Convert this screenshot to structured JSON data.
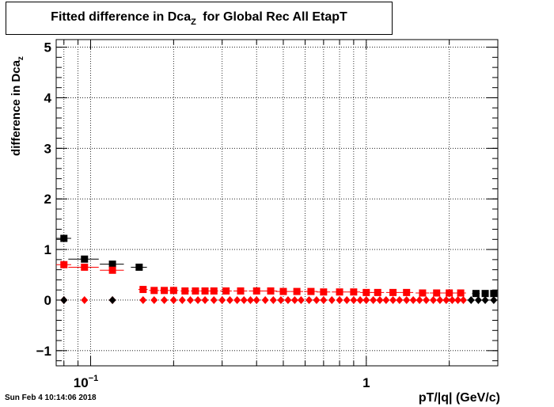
{
  "title": {
    "main": "Fitted difference in Dca",
    "sub": "Z",
    "rest": " for Global Rec All EtapT"
  },
  "ylabel": {
    "main": "difference in Dca",
    "sub": "z"
  },
  "xlabel": "pT/|q| (GeV/c)",
  "timestamp": "Sun Feb  4 10:14:06 2018",
  "chart_data": {
    "type": "scatter",
    "xscale": "log",
    "xlim": [
      0.075,
      3.0
    ],
    "ylim": [
      -1.3,
      5.15
    ],
    "grid": true,
    "x_tick_labels": [
      {
        "value": 0.1,
        "base": "10",
        "exp": "−1"
      },
      {
        "value": 1,
        "base": "1",
        "exp": ""
      }
    ],
    "y_tick_labels": [
      "−1",
      "0",
      "1",
      "2",
      "3",
      "4",
      "5"
    ],
    "colors": {
      "black": "#000000",
      "red": "#ff0000"
    },
    "series": [
      {
        "color": "#000000",
        "marker": "square",
        "x": [
          0.08,
          0.095,
          0.12,
          0.15
        ],
        "y": [
          1.22,
          0.81,
          0.71,
          0.65
        ],
        "xerr": [
          0.005,
          0.012,
          0.012,
          0.01
        ]
      },
      {
        "color": "#ff0000",
        "marker": "square",
        "x": [
          0.08,
          0.095,
          0.12,
          0.155,
          0.17,
          0.185,
          0.2,
          0.22,
          0.24,
          0.26,
          0.28,
          0.31,
          0.35,
          0.4,
          0.45,
          0.5,
          0.56,
          0.63,
          0.7,
          0.8,
          0.9,
          1.0,
          1.1,
          1.25,
          1.4,
          1.6,
          1.8,
          2.0,
          2.2
        ],
        "y": [
          0.7,
          0.65,
          0.59,
          0.21,
          0.19,
          0.19,
          0.19,
          0.18,
          0.18,
          0.18,
          0.18,
          0.18,
          0.18,
          0.18,
          0.18,
          0.17,
          0.17,
          0.17,
          0.16,
          0.16,
          0.16,
          0.15,
          0.15,
          0.15,
          0.15,
          0.14,
          0.14,
          0.14,
          0.14
        ],
        "xerr": [
          0.005,
          0.012,
          0.012,
          0.006,
          0.007,
          0.007,
          0.008,
          0.008,
          0.009,
          0.01,
          0.01,
          0.015,
          0.02,
          0.025,
          0.025,
          0.03,
          0.03,
          0.035,
          0.04,
          0.05,
          0.05,
          0.05,
          0.06,
          0.07,
          0.08,
          0.09,
          0.1,
          0.1,
          0.1
        ]
      },
      {
        "color": "#000000",
        "marker": "square",
        "x": [
          2.5,
          2.7,
          2.9
        ],
        "y": [
          0.13,
          0.13,
          0.13
        ],
        "xerr": [
          0.08,
          0.08,
          0.08
        ]
      },
      {
        "color": "#ff0000",
        "marker": "diamond",
        "x": [
          0.08,
          0.095,
          0.12,
          0.155,
          0.17,
          0.185,
          0.2,
          0.215,
          0.23,
          0.245,
          0.26,
          0.28,
          0.3,
          0.32,
          0.34,
          0.36,
          0.38,
          0.4,
          0.43,
          0.46,
          0.49,
          0.52,
          0.55,
          0.58,
          0.62,
          0.66,
          0.7,
          0.75,
          0.8,
          0.85,
          0.9,
          0.95,
          1.0,
          1.06,
          1.12,
          1.18,
          1.25,
          1.32,
          1.4,
          1.48,
          1.56,
          1.65,
          1.75,
          1.85,
          1.95,
          2.05,
          2.15,
          2.25
        ],
        "y": [
          0,
          0,
          0,
          0,
          0,
          0,
          0,
          0,
          0,
          0,
          0,
          0,
          0,
          0,
          0,
          0,
          0,
          0,
          0,
          0,
          0,
          0,
          0,
          0,
          0,
          0,
          0,
          0,
          0,
          0,
          0,
          0,
          0,
          0,
          0,
          0,
          0,
          0,
          0,
          0,
          0,
          0,
          0,
          0,
          0,
          0,
          0,
          0
        ]
      },
      {
        "color": "#000000",
        "marker": "diamond",
        "x": [
          0.08,
          0.12,
          2.4,
          2.55,
          2.7,
          2.9
        ],
        "y": [
          0,
          0,
          0,
          0,
          0,
          0
        ]
      }
    ]
  }
}
